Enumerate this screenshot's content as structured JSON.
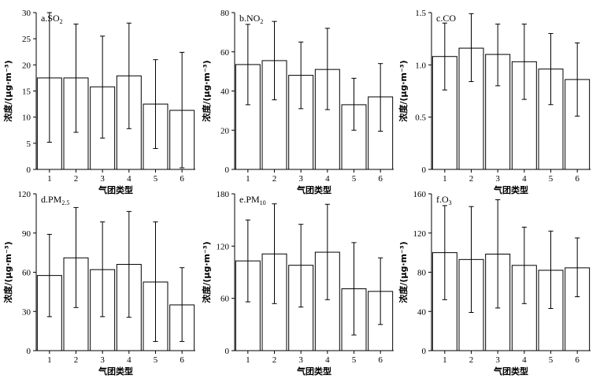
{
  "chart_data": [
    {
      "type": "bar",
      "title": "a.SO",
      "title_sub": "2",
      "title_sup": "",
      "xlabel": "气团类型",
      "ylabel": "浓度/(μg·m⁻³)",
      "categories": [
        "1",
        "2",
        "3",
        "4",
        "5",
        "6"
      ],
      "values": [
        17.5,
        17.5,
        15.8,
        17.9,
        12.5,
        11.3
      ],
      "error_low": [
        5.2,
        7.1,
        6.0,
        7.8,
        4.0,
        0.3
      ],
      "error_high": [
        30.0,
        27.8,
        25.5,
        28.0,
        21.0,
        22.4
      ],
      "ylim": [
        0,
        30
      ],
      "yticks": [
        "0",
        "5",
        "10",
        "15",
        "20",
        "25",
        "30"
      ]
    },
    {
      "type": "bar",
      "title": "b.NO",
      "title_sub": "2",
      "title_sup": "",
      "xlabel": "气团类型",
      "ylabel": "浓度/(μg·m⁻³)",
      "categories": [
        "1",
        "2",
        "3",
        "4",
        "5",
        "6"
      ],
      "values": [
        53.5,
        55.5,
        48.0,
        51.0,
        33.0,
        37.0
      ],
      "error_low": [
        33.0,
        35.5,
        31.0,
        30.5,
        20.0,
        19.5
      ],
      "error_high": [
        74.0,
        75.5,
        65.0,
        72.0,
        46.5,
        54.0
      ],
      "ylim": [
        0,
        80
      ],
      "yticks": [
        "0",
        "20",
        "40",
        "60",
        "80"
      ]
    },
    {
      "type": "bar",
      "title": "c.CO",
      "title_sub": "",
      "title_sup": "",
      "xlabel": "气团类型",
      "ylabel": "浓度/(μg·m⁻³)",
      "categories": [
        "1",
        "2",
        "3",
        "4",
        "5",
        "6"
      ],
      "values": [
        1.08,
        1.16,
        1.1,
        1.03,
        0.96,
        0.86
      ],
      "error_low": [
        0.76,
        0.84,
        0.8,
        0.67,
        0.62,
        0.51
      ],
      "error_high": [
        1.4,
        1.49,
        1.39,
        1.39,
        1.3,
        1.21
      ],
      "ylim": [
        0,
        1.5
      ],
      "yticks": [
        "0",
        "0.5",
        "1.0",
        "1.5"
      ]
    },
    {
      "type": "bar",
      "title": "d.PM",
      "title_sub": "2.5",
      "title_sup": "",
      "xlabel": "气团类型",
      "ylabel": "浓度/(μg·m⁻³)",
      "categories": [
        "1",
        "2",
        "3",
        "4",
        "5",
        "6"
      ],
      "values": [
        57.5,
        71.0,
        62.0,
        66.0,
        52.5,
        35.0
      ],
      "error_low": [
        26.0,
        33.0,
        26.0,
        25.5,
        7.0,
        7.0
      ],
      "error_high": [
        89.0,
        109.5,
        98.5,
        106.5,
        98.5,
        63.5
      ],
      "ylim": [
        0,
        120
      ],
      "yticks": [
        "0",
        "30",
        "60",
        "90",
        "120"
      ]
    },
    {
      "type": "bar",
      "title": "e.PM",
      "title_sub": "10",
      "title_sup": "",
      "xlabel": "气团类型",
      "ylabel": "浓度/(μg·m⁻³)",
      "categories": [
        "1",
        "2",
        "3",
        "4",
        "5",
        "6"
      ],
      "values": [
        103.0,
        111.0,
        98.0,
        113.0,
        71.0,
        68.0
      ],
      "error_low": [
        56.0,
        54.0,
        50.0,
        58.5,
        18.0,
        30.0
      ],
      "error_high": [
        150.0,
        168.5,
        145.0,
        168.0,
        124.0,
        106.5
      ],
      "ylim": [
        0,
        180
      ],
      "yticks": [
        "0",
        "60",
        "120",
        "180"
      ]
    },
    {
      "type": "bar",
      "title": "f.O",
      "title_sub": "3",
      "title_sup": "",
      "xlabel": "气团类型",
      "ylabel": "浓度/(μg·m⁻³)",
      "categories": [
        "1",
        "2",
        "3",
        "4",
        "5",
        "6"
      ],
      "values": [
        100.0,
        93.0,
        98.5,
        87.0,
        82.0,
        84.5
      ],
      "error_low": [
        52.0,
        39.0,
        43.5,
        48.0,
        43.0,
        55.0
      ],
      "error_high": [
        148.0,
        147.0,
        154.0,
        126.0,
        122.0,
        115.0
      ],
      "ylim": [
        0,
        160
      ],
      "yticks": [
        "0",
        "40",
        "80",
        "120",
        "160"
      ]
    }
  ]
}
